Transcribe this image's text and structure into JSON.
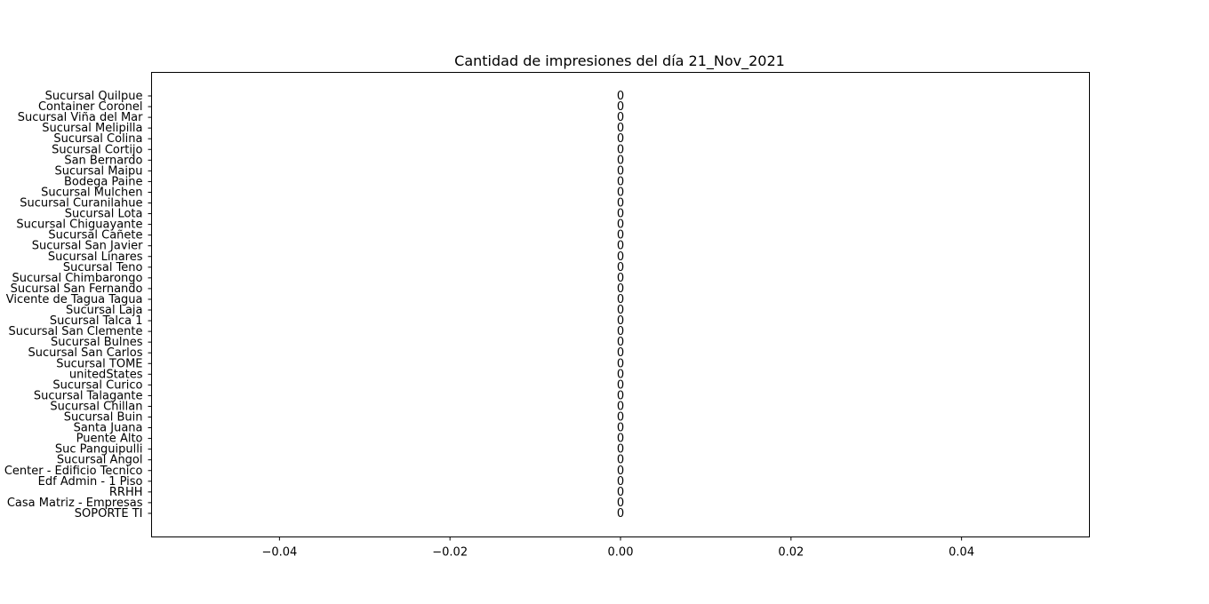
{
  "chart_data": {
    "type": "bar",
    "orientation": "horizontal",
    "title": "Cantidad de impresiones del día 21_Nov_2021",
    "xlabel": "",
    "ylabel": "",
    "xlim": [
      -0.055,
      0.055
    ],
    "x_ticks": [
      -0.04,
      -0.02,
      0.0,
      0.02,
      0.04
    ],
    "x_tick_labels": [
      "−0.04",
      "−0.02",
      "0.00",
      "0.02",
      "0.04"
    ],
    "grid": false,
    "categories": [
      "Sucursal Quilpue",
      "Container Coronel",
      "Sucursal Viña del Mar",
      "Sucursal Melipilla",
      "Sucursal Colina",
      "Sucursal Cortijo",
      "San Bernardo",
      "Sucursal Maipu",
      "Bodega Paine",
      "Sucursal Mulchen",
      "Sucursal Curanilahue",
      "Sucursal Lota",
      "Sucursal Chiguayante",
      "Sucursal Cañete",
      "Sucursal San Javier",
      "Sucursal Linares",
      "Sucursal Teno",
      "Sucursal Chimbarongo",
      "Sucursal San Fernando",
      "Vicente de Tagua Tagua",
      "Sucursal Laja",
      "Sucursal Talca 1",
      "Sucursal San Clemente",
      "Sucursal Bulnes",
      "Sucursal San Carlos",
      "Sucursal TOME",
      "unitedStates",
      "Sucursal Curico",
      "Sucursal Talagante",
      "Sucursal Chillan",
      "Sucursal Buin",
      "Santa Juana",
      "Puente Alto",
      "Suc Panguipulli",
      "Sucursal Angol",
      "Center - Edificio Tecnico",
      "Edf Admin - 1 Piso",
      "RRHH",
      "Casa Matriz - Empresas",
      "SOPORTE TI"
    ],
    "values": [
      0,
      0,
      0,
      0,
      0,
      0,
      0,
      0,
      0,
      0,
      0,
      0,
      0,
      0,
      0,
      0,
      0,
      0,
      0,
      0,
      0,
      0,
      0,
      0,
      0,
      0,
      0,
      0,
      0,
      0,
      0,
      0,
      0,
      0,
      0,
      0,
      0,
      0,
      0,
      0
    ],
    "data_labels": [
      "0",
      "0",
      "0",
      "0",
      "0",
      "0",
      "0",
      "0",
      "0",
      "0",
      "0",
      "0",
      "0",
      "0",
      "0",
      "0",
      "0",
      "0",
      "0",
      "0",
      "0",
      "0",
      "0",
      "0",
      "0",
      "0",
      "0",
      "0",
      "0",
      "0",
      "0",
      "0",
      "0",
      "0",
      "0",
      "0",
      "0",
      "0",
      "0",
      "0"
    ],
    "bar_color": "#1f77b4"
  }
}
